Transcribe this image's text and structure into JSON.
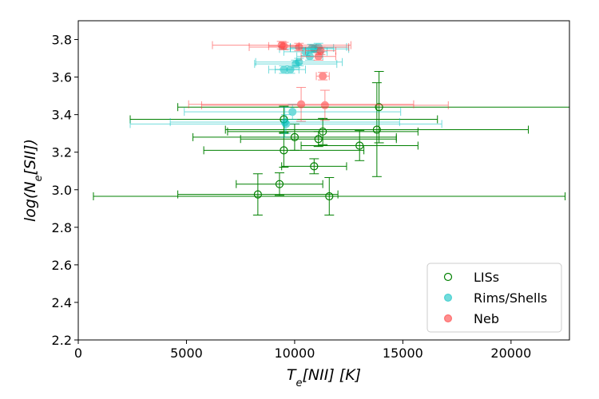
{
  "chart_data": {
    "type": "scatter",
    "title": "",
    "xlabel": "T_e[NII] [K]",
    "ylabel": "log(N_e[SII])",
    "xlim": [
      0,
      22700
    ],
    "ylim": [
      2.2,
      3.9
    ],
    "xticks": [
      0,
      5000,
      10000,
      15000,
      20000
    ],
    "yticks": [
      2.2,
      2.4,
      2.6,
      2.8,
      3.0,
      3.2,
      3.4,
      3.6,
      3.8
    ],
    "legend_position": "lower-right",
    "series": [
      {
        "name": "LISs",
        "color": "#008000",
        "marker": "open-circle",
        "points": [
          {
            "x": 8300,
            "y": 2.975,
            "xerr": 3700,
            "yerr": 0.11
          },
          {
            "x": 11600,
            "y": 2.965,
            "xerr": 10900,
            "yerr": 0.1
          },
          {
            "x": 9300,
            "y": 3.03,
            "xerr": 2000,
            "yerr": 0.06
          },
          {
            "x": 10900,
            "y": 3.125,
            "xerr": 1500,
            "yerr": 0.04
          },
          {
            "x": 9500,
            "y": 3.21,
            "xerr": 3700,
            "yerr": 0.09
          },
          {
            "x": 10000,
            "y": 3.28,
            "xerr": 4700,
            "yerr": 0.07
          },
          {
            "x": 11100,
            "y": 3.27,
            "xerr": 3600,
            "yerr": 0.04
          },
          {
            "x": 11300,
            "y": 3.31,
            "xerr": 4400,
            "yerr": 0.07
          },
          {
            "x": 13000,
            "y": 3.235,
            "xerr": 2700,
            "yerr": 0.08
          },
          {
            "x": 13800,
            "y": 3.32,
            "xerr": 7000,
            "yerr": 0.25
          },
          {
            "x": 9500,
            "y": 3.375,
            "xerr": 7100,
            "yerr": 0.07
          },
          {
            "x": 13900,
            "y": 3.44,
            "xerr": 9300,
            "yerr": 0.19
          }
        ]
      },
      {
        "name": "Rims/Shells",
        "color": "#00BFBF",
        "marker": "filled-circle",
        "points": [
          {
            "x": 9600,
            "y": 3.35,
            "xerr": 7200,
            "yerr": 0.05
          },
          {
            "x": 9550,
            "y": 3.36,
            "xerr": 5300,
            "yerr": 0.08
          },
          {
            "x": 9900,
            "y": 3.415,
            "xerr": 5000,
            "yerr": 0.04
          },
          {
            "x": 9500,
            "y": 3.64,
            "xerr": 700,
            "yerr": 0.02
          },
          {
            "x": 9800,
            "y": 3.64,
            "xerr": 700,
            "yerr": 0.02
          },
          {
            "x": 10050,
            "y": 3.67,
            "xerr": 1900,
            "yerr": 0.02
          },
          {
            "x": 10200,
            "y": 3.68,
            "xerr": 2000,
            "yerr": 0.02
          },
          {
            "x": 10700,
            "y": 3.71,
            "xerr": 600,
            "yerr": 0.02
          },
          {
            "x": 10500,
            "y": 3.735,
            "xerr": 1000,
            "yerr": 0.02
          },
          {
            "x": 10900,
            "y": 3.75,
            "xerr": 1600,
            "yerr": 0.02
          },
          {
            "x": 11100,
            "y": 3.76,
            "xerr": 1300,
            "yerr": 0.02
          },
          {
            "x": 10800,
            "y": 3.755,
            "xerr": 1000,
            "yerr": 0.02
          }
        ]
      },
      {
        "name": "Neb",
        "color": "#FF3333",
        "marker": "filled-circle",
        "points": [
          {
            "x": 10300,
            "y": 3.455,
            "xerr": 5200,
            "yerr": 0.09
          },
          {
            "x": 11400,
            "y": 3.45,
            "xerr": 5700,
            "yerr": 0.08
          },
          {
            "x": 11300,
            "y": 3.605,
            "xerr": 300,
            "yerr": 0.02
          },
          {
            "x": 11100,
            "y": 3.71,
            "xerr": 800,
            "yerr": 0.02
          },
          {
            "x": 11200,
            "y": 3.74,
            "xerr": 700,
            "yerr": 0.02
          },
          {
            "x": 9400,
            "y": 3.77,
            "xerr": 3200,
            "yerr": 0.02
          },
          {
            "x": 9500,
            "y": 3.765,
            "xerr": 700,
            "yerr": 0.02
          },
          {
            "x": 10200,
            "y": 3.76,
            "xerr": 2300,
            "yerr": 0.02
          }
        ]
      }
    ]
  }
}
